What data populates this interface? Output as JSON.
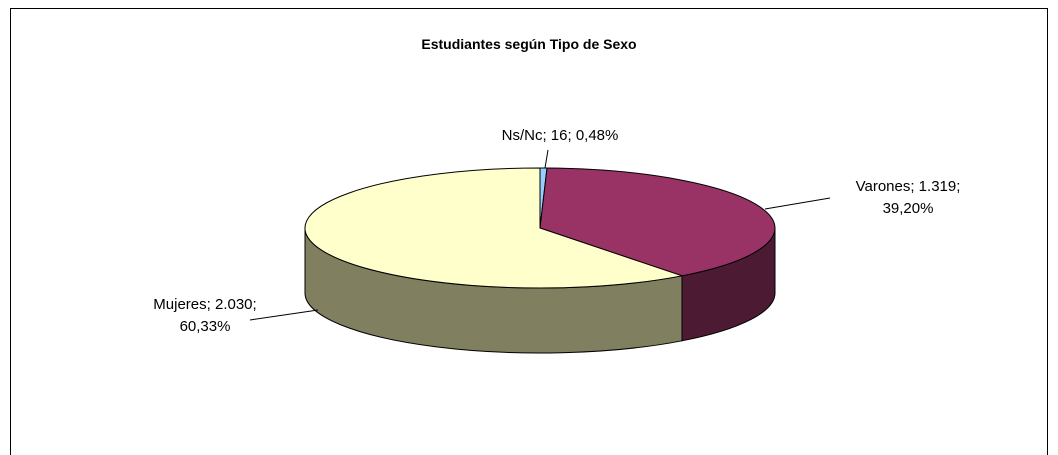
{
  "chart_data": {
    "type": "pie3d",
    "title": "Estudiantes según Tipo de Sexo",
    "values": [
      16,
      1319,
      2030
    ],
    "value_labels": [
      [
        "Ns/Nc; 16; 0,48%"
      ],
      [
        "Varones; 1.319;",
        "39,20%"
      ],
      [
        "Mujeres; 2.030;",
        "60,33%"
      ]
    ],
    "colors": [
      "#99ccff",
      "#993366",
      "#ffffcc"
    ],
    "side_colors": [
      "#5c7a99",
      "#4d1a33",
      "#808060"
    ]
  }
}
